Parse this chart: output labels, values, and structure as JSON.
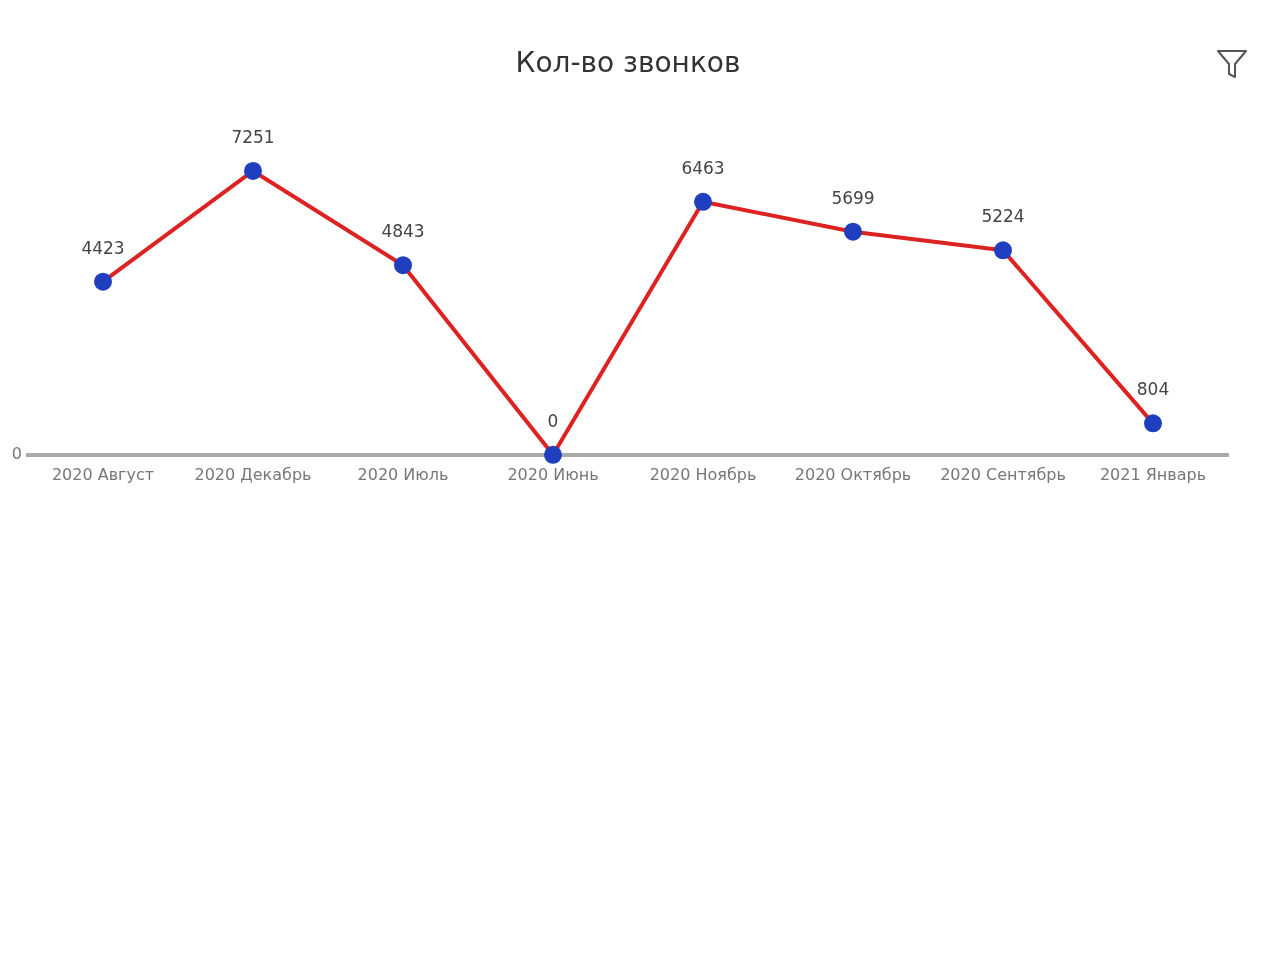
{
  "chart_data": {
    "type": "line",
    "title": "Кол-во звонков",
    "categories": [
      "2020 Август",
      "2020 Декабрь",
      "2020 Июль",
      "2020 Июнь",
      "2020 Ноябрь",
      "2020 Октябрь",
      "2020 Сентябрь",
      "2021 Январь"
    ],
    "annotations": [
      "0"
    ],
    "data_labels": true,
    "series": [
      {
        "color": "#dd2222",
        "values": [
          4423,
          7251,
          4843,
          0,
          6463,
          5699,
          5224,
          804
        ]
      }
    ],
    "marker": "circle",
    "line_style": "solid",
    "legend": false,
    "grid": false
  }
}
